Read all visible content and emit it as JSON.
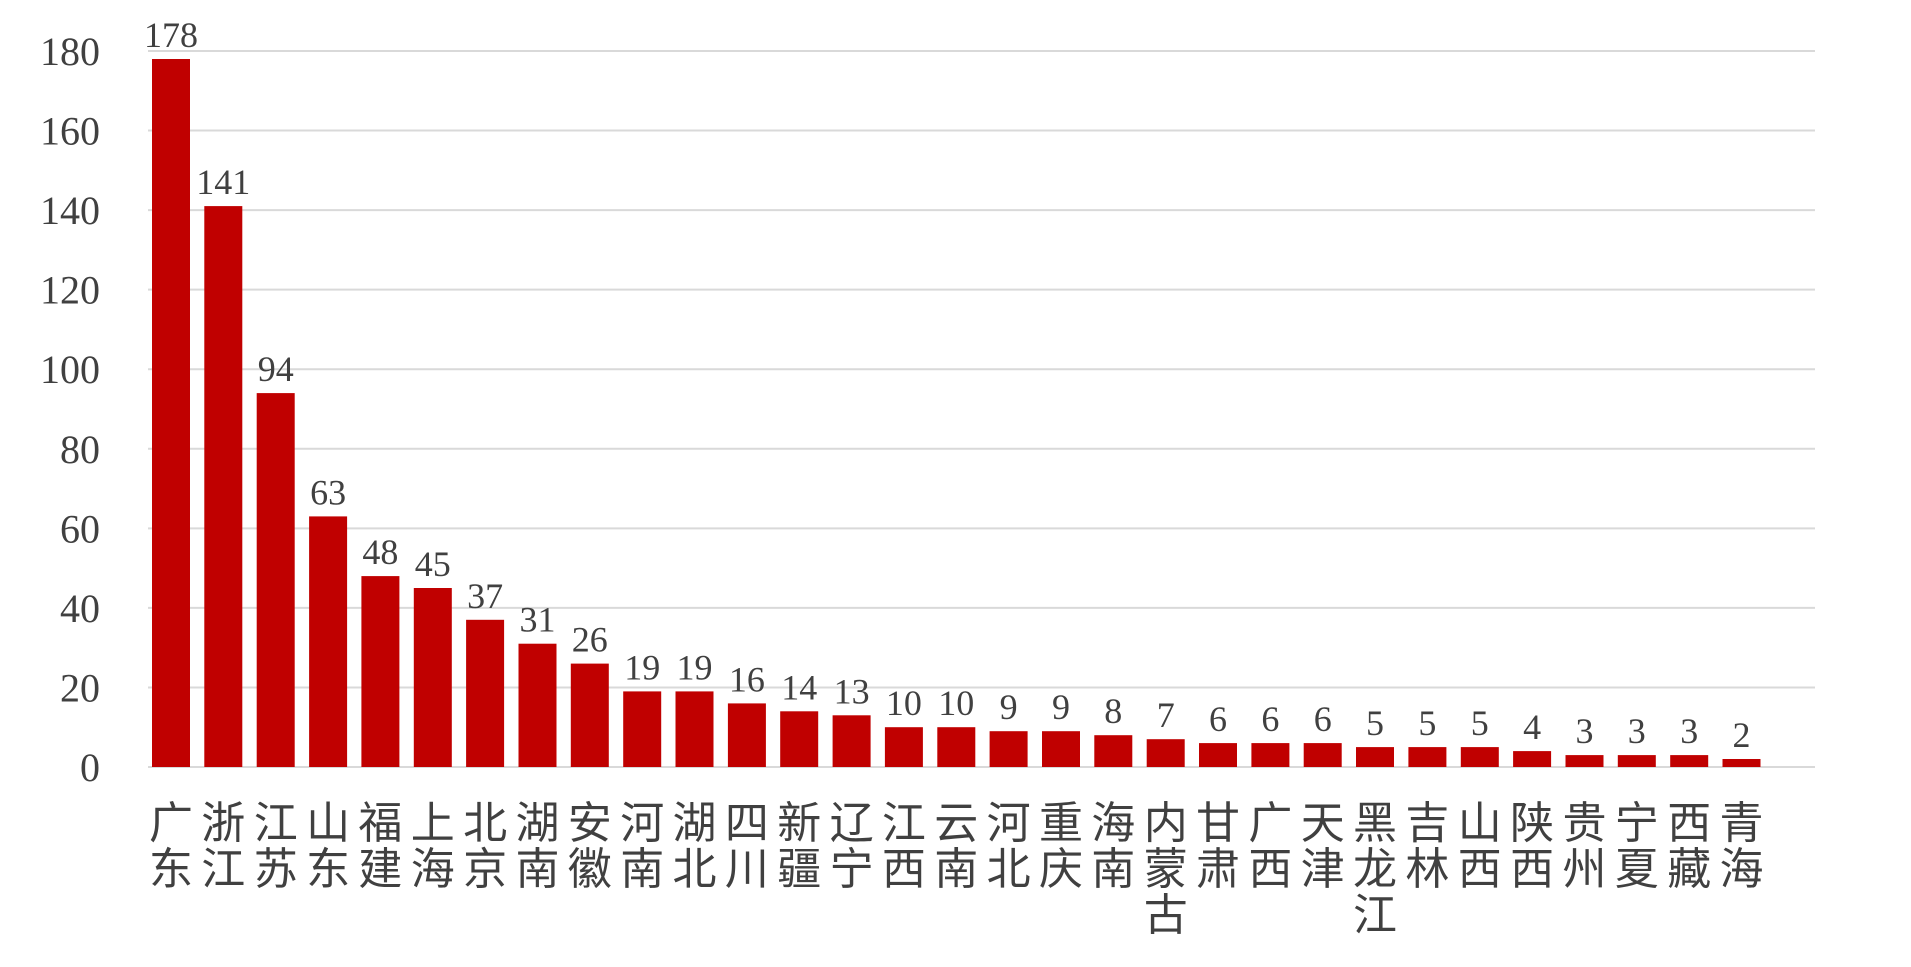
{
  "chart_data": {
    "type": "bar",
    "categories": [
      "广东",
      "浙江",
      "江苏",
      "山东",
      "福建",
      "上海",
      "北京",
      "湖南",
      "安徽",
      "河南",
      "湖北",
      "四川",
      "新疆",
      "辽宁",
      "江西",
      "云南",
      "河北",
      "重庆",
      "海南",
      "内蒙古",
      "甘肃",
      "广西",
      "天津",
      "黑龙江",
      "吉林",
      "山西",
      "陕西",
      "贵州",
      "宁夏",
      "西藏",
      "青海"
    ],
    "values": [
      178,
      141,
      94,
      63,
      48,
      45,
      37,
      31,
      26,
      19,
      19,
      16,
      14,
      13,
      10,
      10,
      9,
      9,
      8,
      7,
      6,
      6,
      6,
      5,
      5,
      5,
      4,
      3,
      3,
      3,
      2
    ],
    "title": "",
    "xlabel": "",
    "ylabel": "",
    "ylim": [
      0,
      180
    ],
    "yticks": [
      0,
      20,
      40,
      60,
      80,
      100,
      120,
      140,
      160,
      180
    ],
    "grid": true,
    "legend": "none",
    "bar_color": "#c00000",
    "data_labels": true
  }
}
